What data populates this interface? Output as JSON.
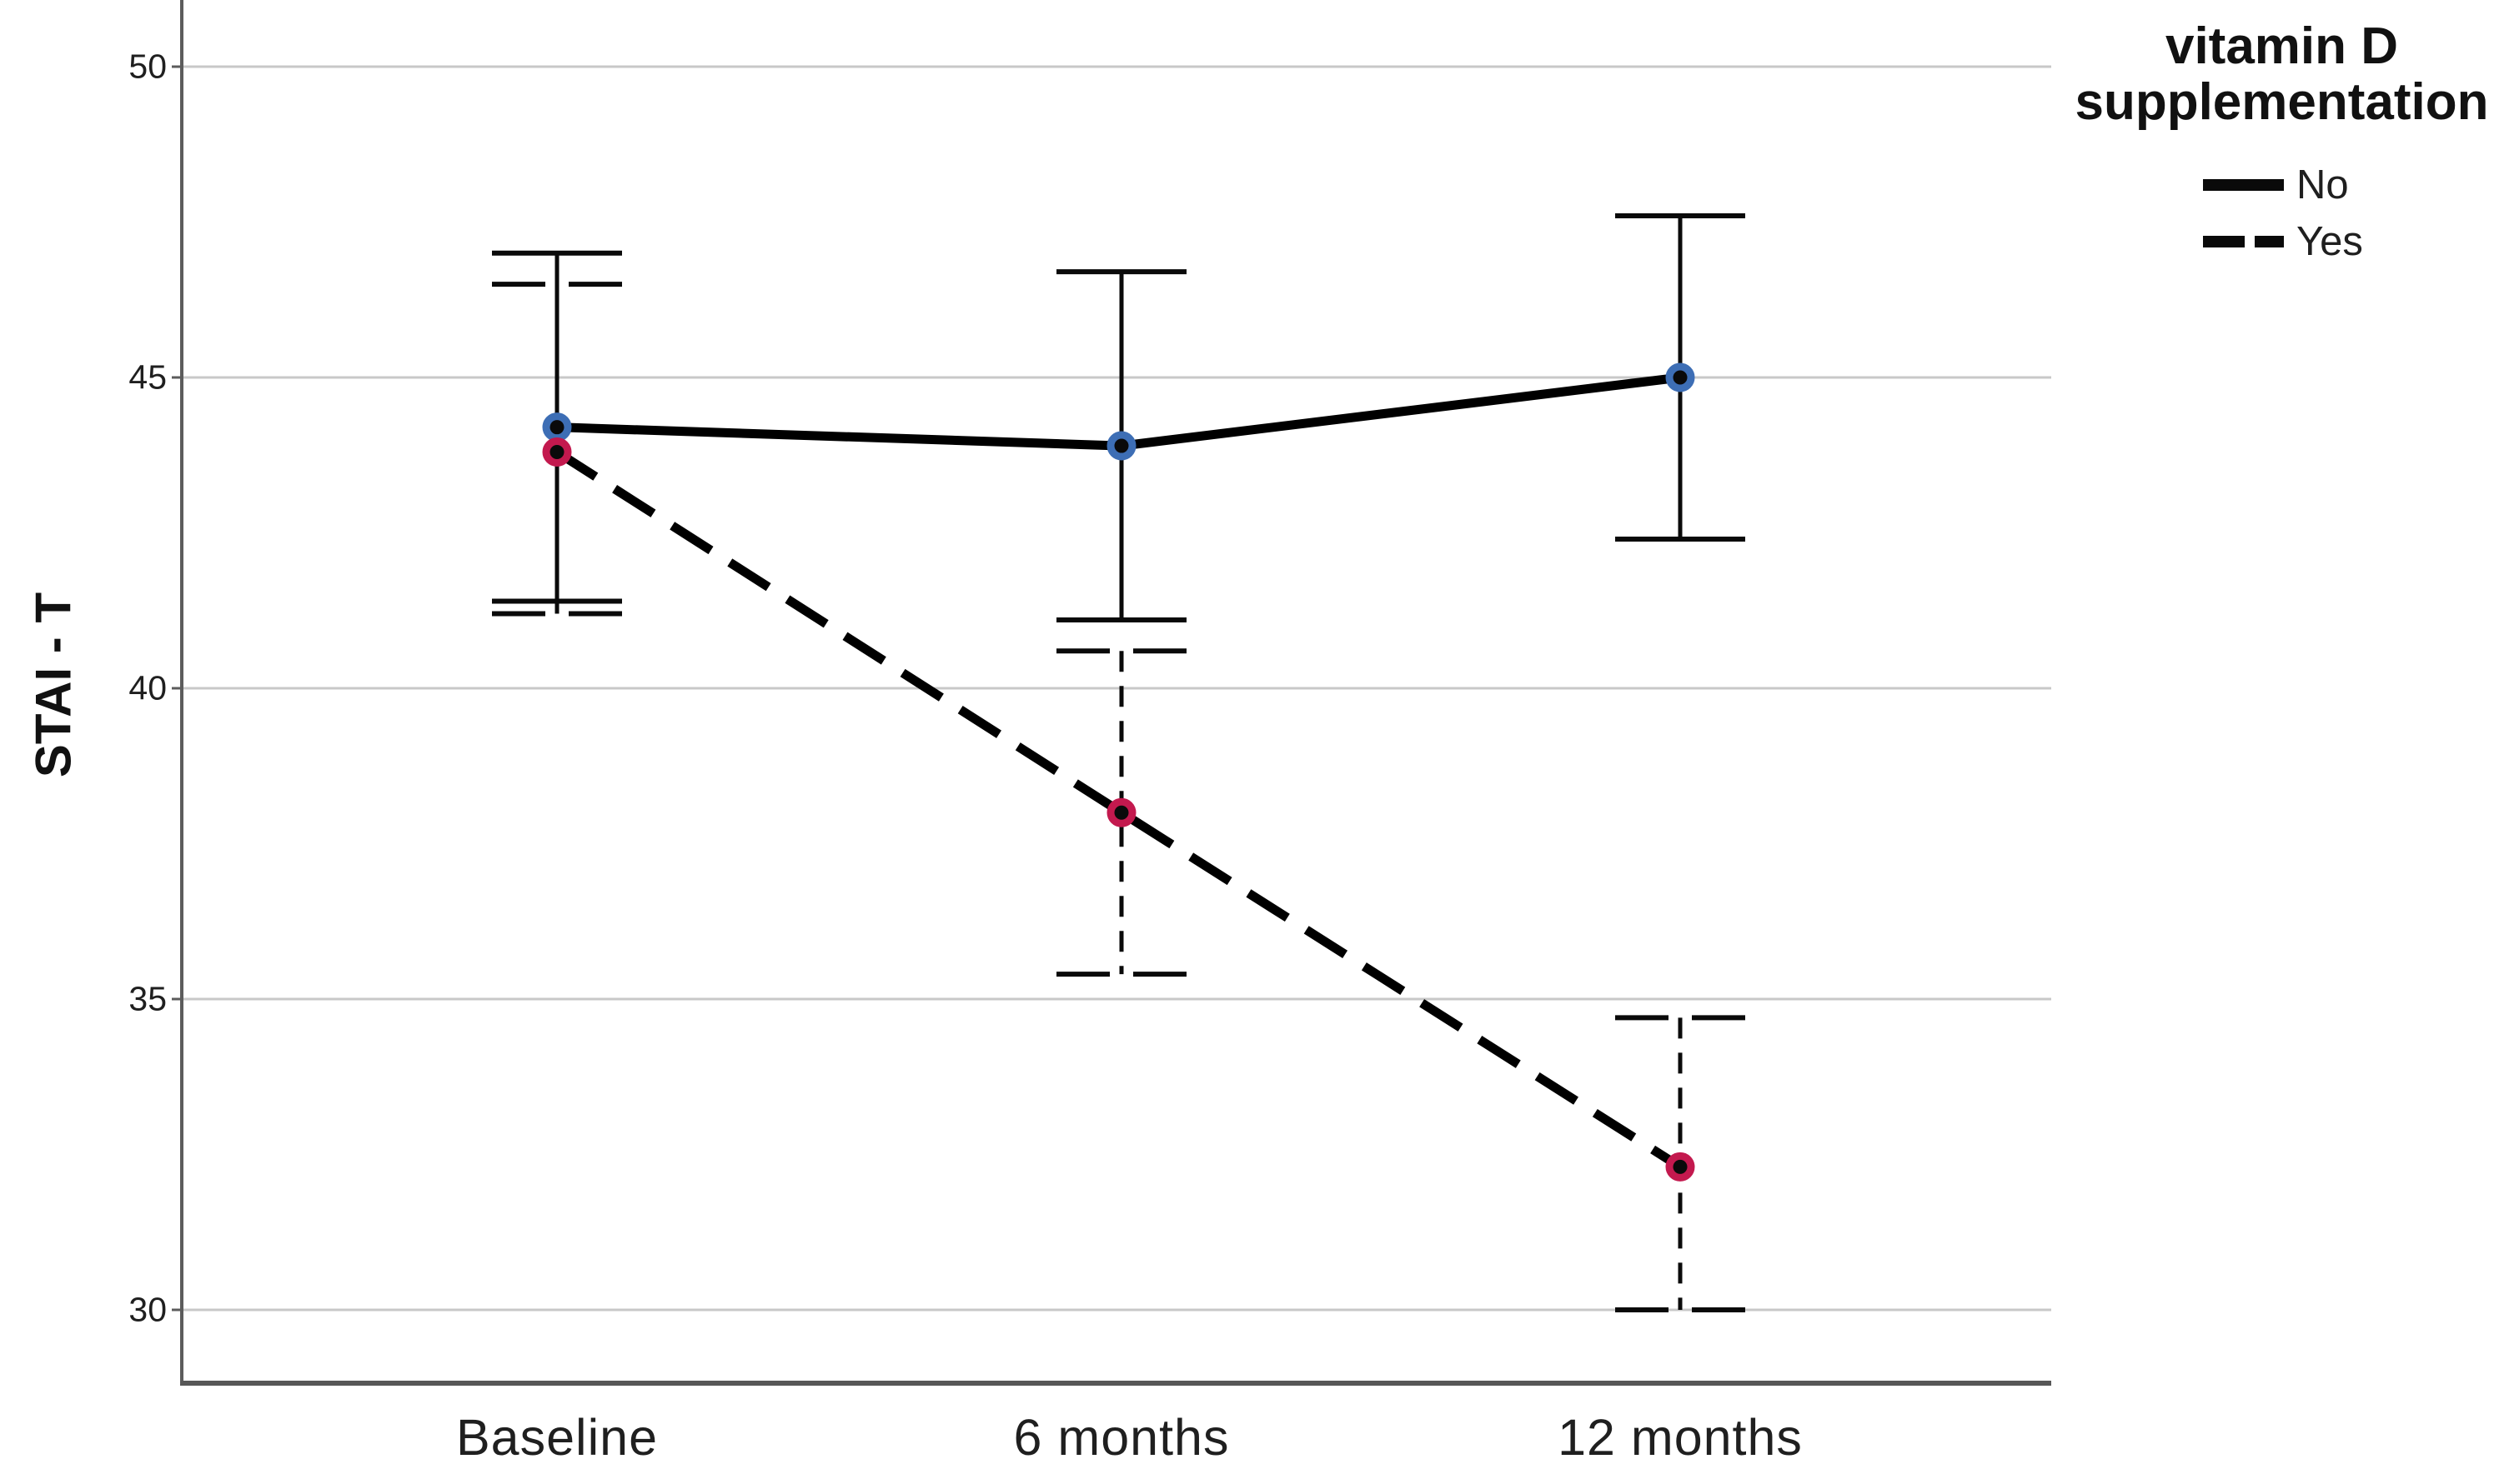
{
  "figure": {
    "ylabel": "STAI - T"
  },
  "legend": {
    "title_line1": "vitamin D",
    "title_line2": "supplementation",
    "items": [
      {
        "label": "No",
        "style": "solid"
      },
      {
        "label": "Yes",
        "style": "dashed"
      }
    ]
  },
  "chart_data": {
    "type": "line",
    "title": "",
    "xlabel": "",
    "ylabel": "STAI - T",
    "categories": [
      "Baseline",
      "6 months",
      "12 months"
    ],
    "yticks": [
      50,
      45,
      40,
      35,
      30
    ],
    "ylim": [
      28.8,
      51.1
    ],
    "grid": true,
    "legend_title": "vitamin D supplementation",
    "legend_position": "top-right",
    "error_bar_caps": true,
    "series": [
      {
        "name": "No",
        "line_style": "solid",
        "line_color": "#000000",
        "marker_color": "#3d6eb5",
        "values": [
          44.2,
          43.9,
          45.0
        ],
        "ci_high": [
          47.0,
          46.7,
          47.6
        ],
        "ci_low": [
          41.4,
          41.1,
          42.4
        ]
      },
      {
        "name": "Yes",
        "line_style": "dashed",
        "line_color": "#000000",
        "marker_color": "#c3194e",
        "values": [
          43.8,
          38.0,
          32.3
        ],
        "ci_high": [
          46.5,
          40.6,
          34.7
        ],
        "ci_low": [
          41.2,
          35.4,
          30.0
        ]
      }
    ]
  },
  "colors": {
    "grid": "#c8c8c8",
    "axis": "#575757",
    "text": "#1f1f1f"
  }
}
